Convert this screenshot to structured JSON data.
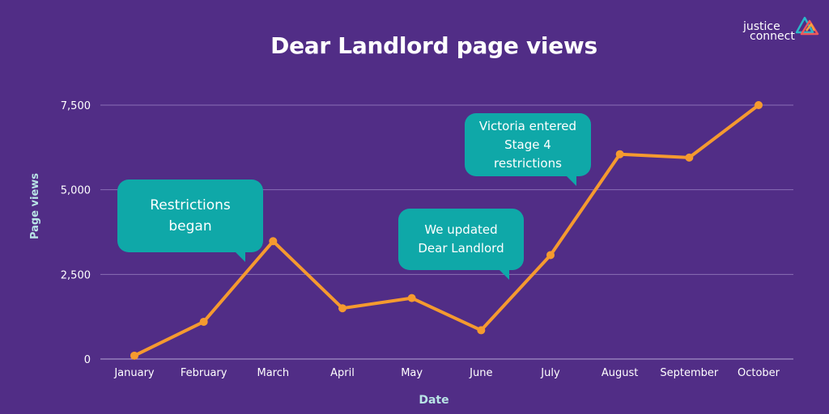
{
  "brand": {
    "line1": "justice",
    "line2": "connect",
    "logo_colors": [
      "#ef5a5a",
      "#f7a23b",
      "#29b7c9"
    ]
  },
  "colors": {
    "background": "#512d86",
    "line": "#f59a2f",
    "grid": "#8a6fb5",
    "callout": "#0fa8a8",
    "axis_label": "#b9e4e6"
  },
  "chart_data": {
    "type": "line",
    "title": "Dear Landlord page views",
    "xlabel": "Date",
    "ylabel": "Page views",
    "categories": [
      "January",
      "February",
      "March",
      "April",
      "May",
      "June",
      "July",
      "August",
      "September",
      "October"
    ],
    "series": [
      {
        "values": [
          100,
          1100,
          3480,
          1500,
          1800,
          850,
          3070,
          6050,
          5950,
          7500
        ]
      }
    ],
    "ylim": [
      0,
      7500
    ],
    "yticks": [
      0,
      2500,
      5000,
      7500
    ],
    "ytick_labels": [
      "0",
      "2,500",
      "5,000",
      "7,500"
    ],
    "grid": true,
    "annotations": [
      {
        "text": "Restrictions began",
        "lines": [
          "Restrictions",
          "began"
        ]
      },
      {
        "text": "We updated Dear Landlord",
        "lines": [
          "We updated",
          "Dear Landlord"
        ]
      },
      {
        "text": "Victoria entered Stage 4 restrictions",
        "lines": [
          "Victoria entered",
          "Stage 4",
          "restrictions"
        ]
      }
    ]
  }
}
